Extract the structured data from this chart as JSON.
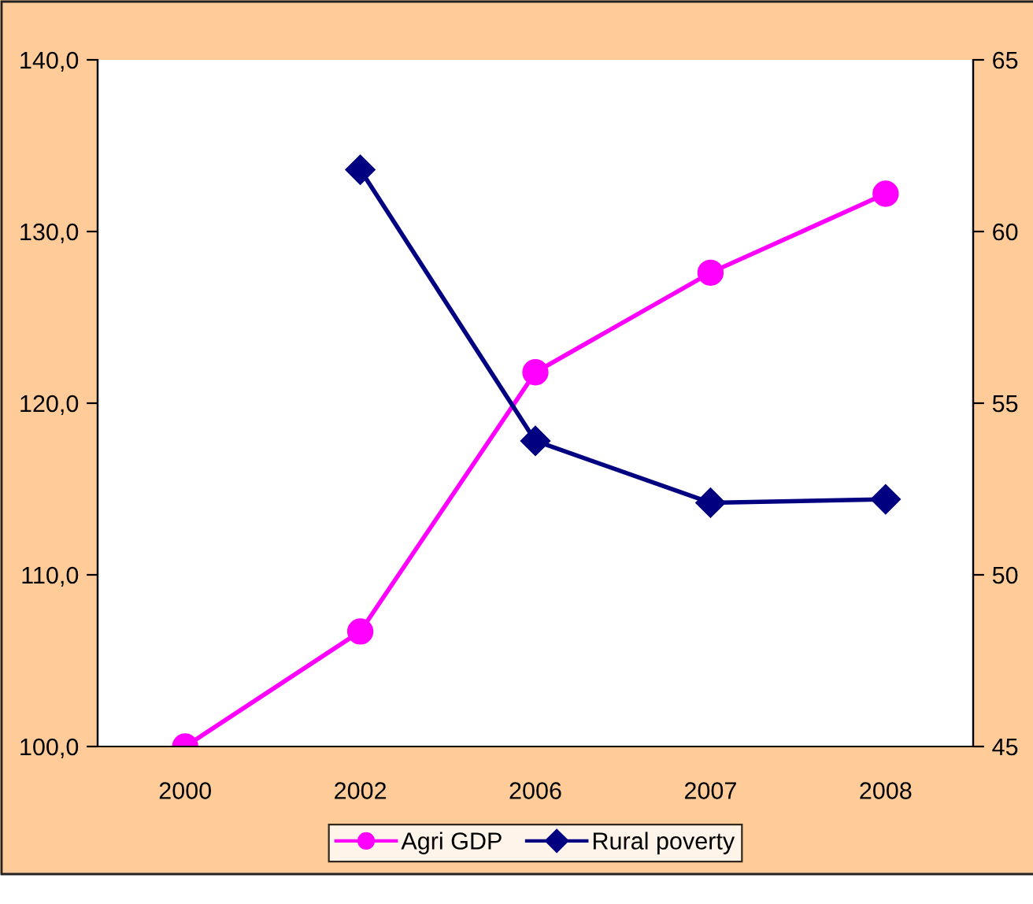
{
  "chart_data": {
    "type": "line",
    "categories": [
      "2000",
      "2002",
      "2006",
      "2007",
      "2008"
    ],
    "series": [
      {
        "name": "Agri GDP",
        "color": "#ff00ff",
        "marker": "circle",
        "values": [
          100.0,
          106.7,
          121.8,
          127.6,
          132.2
        ]
      },
      {
        "name": "Rural poverty",
        "color": "#000080",
        "marker": "diamond",
        "axis": "y2",
        "values": [
          null,
          61.8,
          53.9,
          52.1,
          52.2
        ]
      }
    ],
    "ylim": [
      100,
      140
    ],
    "yticks": [
      {
        "value": 100,
        "label": "100,0"
      },
      {
        "value": 110,
        "label": "110,0"
      },
      {
        "value": 120,
        "label": "120,0"
      },
      {
        "value": 130,
        "label": "130,0"
      },
      {
        "value": 140,
        "label": "140,0"
      }
    ],
    "y2lim": [
      45,
      65
    ],
    "y2ticks": [
      {
        "value": 45,
        "label": "45"
      },
      {
        "value": 50,
        "label": "50"
      },
      {
        "value": 55,
        "label": "55"
      },
      {
        "value": 60,
        "label": "60"
      },
      {
        "value": 65,
        "label": "65"
      }
    ],
    "grid": false,
    "legend": "bottom"
  }
}
